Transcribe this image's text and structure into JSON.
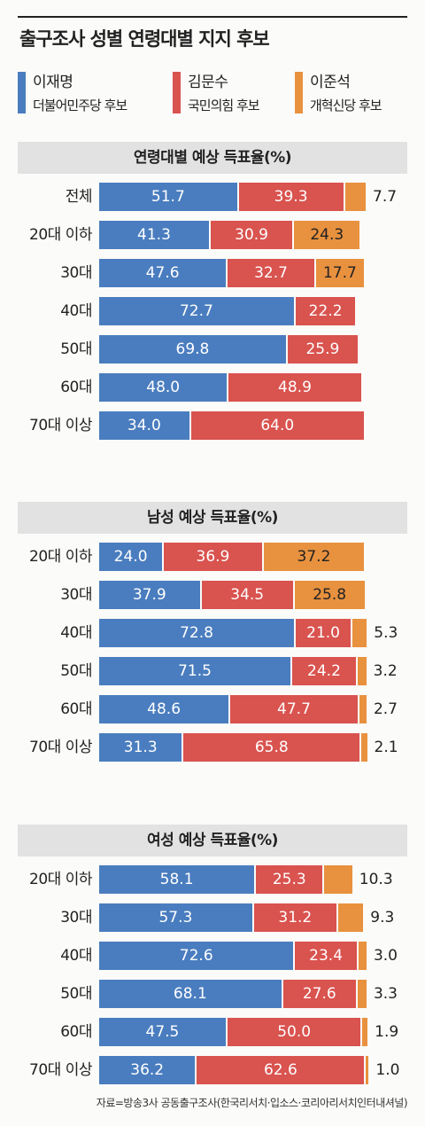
{
  "title": "출구조사 성별 연령대별 지지 후보",
  "colors": {
    "lee": "#4a7dbf",
    "kim": "#d9534f",
    "lejs": "#e8913e"
  },
  "legend": [
    {
      "name": "이재명",
      "party": "더불어민주당 후보",
      "color": "#4a7dbf"
    },
    {
      "name": "김문수",
      "party": "국민의힘 후보",
      "color": "#d9534f"
    },
    {
      "name": "이준석",
      "party": "개혁신당 후보",
      "color": "#e8913e"
    }
  ],
  "source": "자료=방송3사 공동출구조사(한국리서치·입소스·코리아리서치인터내셔널)",
  "chart_data": [
    {
      "type": "bar",
      "stacked": true,
      "orientation": "horizontal",
      "title": "연령대별 예상 득표율(%)",
      "categories": [
        "전체",
        "20대 이하",
        "30대",
        "40대",
        "50대",
        "60대",
        "70대 이상"
      ],
      "series": [
        {
          "name": "이재명",
          "values": [
            51.7,
            41.3,
            47.6,
            72.7,
            69.8,
            48.0,
            34.0
          ]
        },
        {
          "name": "김문수",
          "values": [
            39.3,
            30.9,
            32.7,
            22.2,
            25.9,
            48.9,
            64.0
          ]
        },
        {
          "name": "이준석",
          "values": [
            7.7,
            24.3,
            17.7,
            null,
            null,
            null,
            null
          ]
        }
      ]
    },
    {
      "type": "bar",
      "stacked": true,
      "orientation": "horizontal",
      "title": "남성 예상 득표율(%)",
      "categories": [
        "20대 이하",
        "30대",
        "40대",
        "50대",
        "60대",
        "70대 이상"
      ],
      "series": [
        {
          "name": "이재명",
          "values": [
            24.0,
            37.9,
            72.8,
            71.5,
            48.6,
            31.3
          ]
        },
        {
          "name": "김문수",
          "values": [
            36.9,
            34.5,
            21.0,
            24.2,
            47.7,
            65.8
          ]
        },
        {
          "name": "이준석",
          "values": [
            37.2,
            25.8,
            5.3,
            3.2,
            2.7,
            2.1
          ]
        }
      ]
    },
    {
      "type": "bar",
      "stacked": true,
      "orientation": "horizontal",
      "title": "여성 예상 득표율(%)",
      "categories": [
        "20대 이하",
        "30대",
        "40대",
        "50대",
        "60대",
        "70대 이상"
      ],
      "series": [
        {
          "name": "이재명",
          "values": [
            58.1,
            57.3,
            72.6,
            68.1,
            47.5,
            36.2
          ]
        },
        {
          "name": "김문수",
          "values": [
            25.3,
            31.2,
            23.4,
            27.6,
            50.0,
            62.6
          ]
        },
        {
          "name": "이준석",
          "values": [
            10.3,
            9.3,
            3.0,
            3.3,
            1.9,
            1.0
          ]
        }
      ]
    }
  ]
}
